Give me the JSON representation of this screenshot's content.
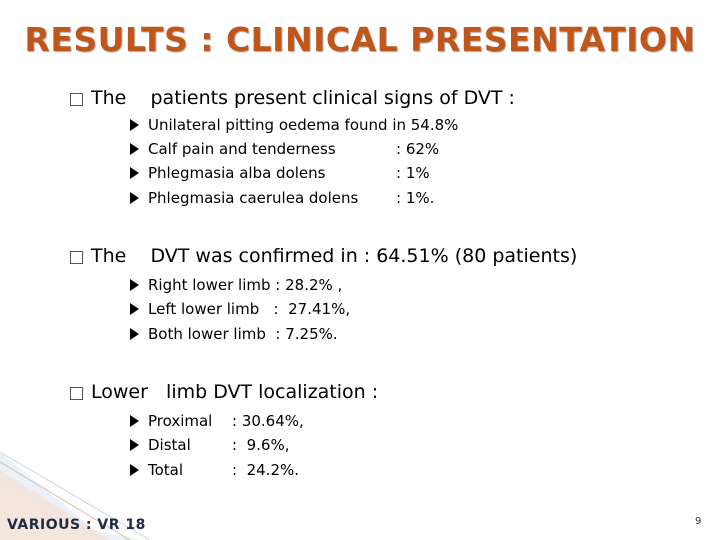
{
  "title": "RESULTS : CLINICAL PRESENTATION",
  "sections": [
    {
      "heading": "The    patients present clinical signs of DVT :",
      "items": [
        {
          "label": "Unilateral pitting oedema found in 54.8%",
          "value": ""
        },
        {
          "label": "Calf pain and tenderness",
          "value": ": 62%"
        },
        {
          "label": "Phlegmasia alba dolens",
          "value": ": 1%"
        },
        {
          "label": "Phlegmasia caerulea dolens",
          "value": ": 1%."
        }
      ]
    },
    {
      "heading": "The    DVT was confirmed in : 64.51% (80 patients)",
      "items": [
        {
          "label": "Right lower limb : 28.2% ,",
          "value": ""
        },
        {
          "label": "Left lower limb   :  27.41%,",
          "value": ""
        },
        {
          "label": "Both lower limb  : 7.25%.",
          "value": ""
        }
      ]
    },
    {
      "heading": "Lower   limb DVT localization :",
      "items": [
        {
          "label": "Proximal",
          "value": ":  30.64%,"
        },
        {
          "label": "Distal",
          "value": ":  9.6%,"
        },
        {
          "label": "Total",
          "value": ":  24.2%."
        }
      ]
    }
  ],
  "footer": "VARIOUS : VR 18",
  "page_number": "9",
  "colors": {
    "title": "#c0561a",
    "footer": "#1f2a44"
  }
}
